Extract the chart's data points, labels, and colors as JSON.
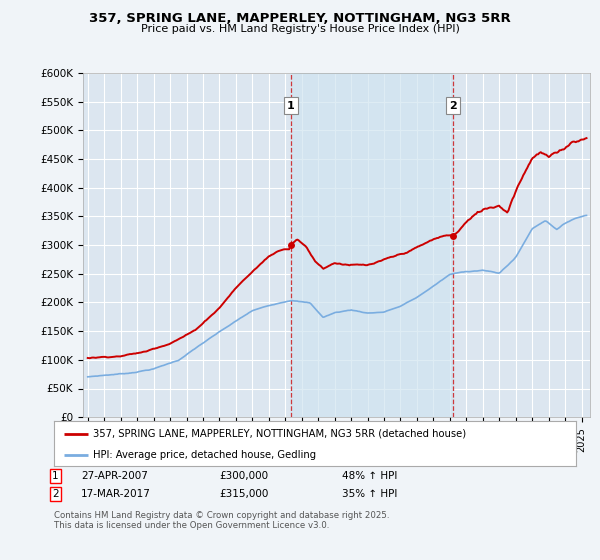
{
  "title_line1": "357, SPRING LANE, MAPPERLEY, NOTTINGHAM, NG3 5RR",
  "title_line2": "Price paid vs. HM Land Registry's House Price Index (HPI)",
  "bg_color": "#f0f4f8",
  "plot_bg_color": "#dce6f0",
  "grid_color": "#ffffff",
  "shade_color": "#d0e4f0",
  "red_color": "#cc0000",
  "blue_color": "#7aade0",
  "sale1_x": 2007.32,
  "sale1_y": 300000,
  "sale2_x": 2017.21,
  "sale2_y": 315000,
  "legend_line1": "357, SPRING LANE, MAPPERLEY, NOTTINGHAM, NG3 5RR (detached house)",
  "legend_line2": "HPI: Average price, detached house, Gedling",
  "sale1_date": "27-APR-2007",
  "sale1_price": "£300,000",
  "sale1_hpi": "48% ↑ HPI",
  "sale2_date": "17-MAR-2017",
  "sale2_price": "£315,000",
  "sale2_hpi": "35% ↑ HPI",
  "footer": "Contains HM Land Registry data © Crown copyright and database right 2025.\nThis data is licensed under the Open Government Licence v3.0.",
  "ylim": [
    0,
    600000
  ],
  "xlim": [
    1994.7,
    2025.5
  ],
  "yticks": [
    0,
    50000,
    100000,
    150000,
    200000,
    250000,
    300000,
    350000,
    400000,
    450000,
    500000,
    550000,
    600000
  ],
  "ytick_labels": [
    "£0",
    "£50K",
    "£100K",
    "£150K",
    "£200K",
    "£250K",
    "£300K",
    "£350K",
    "£400K",
    "£450K",
    "£500K",
    "£550K",
    "£600K"
  ]
}
